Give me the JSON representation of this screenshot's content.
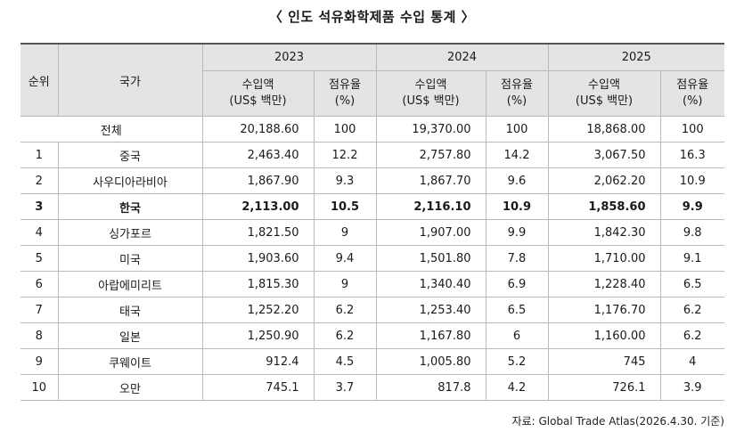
{
  "title": "〈 인도 석유화학제품 수입 통계 〉",
  "headers": {
    "rank": "순위",
    "country": "국가",
    "years": [
      "2023",
      "2024",
      "2025"
    ],
    "import_label_1": "수입액",
    "import_label_2": "(US$ 백만)",
    "share_label_1": "점유율",
    "share_label_2": "(%)"
  },
  "total": {
    "label": "전체",
    "values": [
      "20,188.60",
      "100",
      "19,370.00",
      "100",
      "18,868.00",
      "100"
    ]
  },
  "rows": [
    {
      "rank": "1",
      "country": "중국",
      "values": [
        "2,463.40",
        "12.2",
        "2,757.80",
        "14.2",
        "3,067.50",
        "16.3"
      ]
    },
    {
      "rank": "2",
      "country": "사우디아라비아",
      "values": [
        "1,867.90",
        "9.3",
        "1,867.70",
        "9.6",
        "2,062.20",
        "10.9"
      ]
    },
    {
      "rank": "3",
      "country": "한국",
      "values": [
        "2,113.00",
        "10.5",
        "2,116.10",
        "10.9",
        "1,858.60",
        "9.9"
      ]
    },
    {
      "rank": "4",
      "country": "싱가포르",
      "values": [
        "1,821.50",
        "9",
        "1,907.00",
        "9.9",
        "1,842.30",
        "9.8"
      ]
    },
    {
      "rank": "5",
      "country": "미국",
      "values": [
        "1,903.60",
        "9.4",
        "1,501.80",
        "7.8",
        "1,710.00",
        "9.1"
      ]
    },
    {
      "rank": "6",
      "country": "아랍에미리트",
      "values": [
        "1,815.30",
        "9",
        "1,340.40",
        "6.9",
        "1,228.40",
        "6.5"
      ]
    },
    {
      "rank": "7",
      "country": "태국",
      "values": [
        "1,252.20",
        "6.2",
        "1,253.40",
        "6.5",
        "1,176.70",
        "6.2"
      ]
    },
    {
      "rank": "8",
      "country": "일본",
      "values": [
        "1,250.90",
        "6.2",
        "1,167.80",
        "6",
        "1,160.00",
        "6.2"
      ]
    },
    {
      "rank": "9",
      "country": "쿠웨이트",
      "values": [
        "912.4",
        "4.5",
        "1,005.80",
        "5.2",
        "745",
        "4"
      ]
    },
    {
      "rank": "10",
      "country": "오만",
      "values": [
        "745.1",
        "3.7",
        "817.8",
        "4.2",
        "726.1",
        "3.9"
      ]
    }
  ],
  "source": "자료: Global Trade Atlas(2026.4.30. 기준)"
}
